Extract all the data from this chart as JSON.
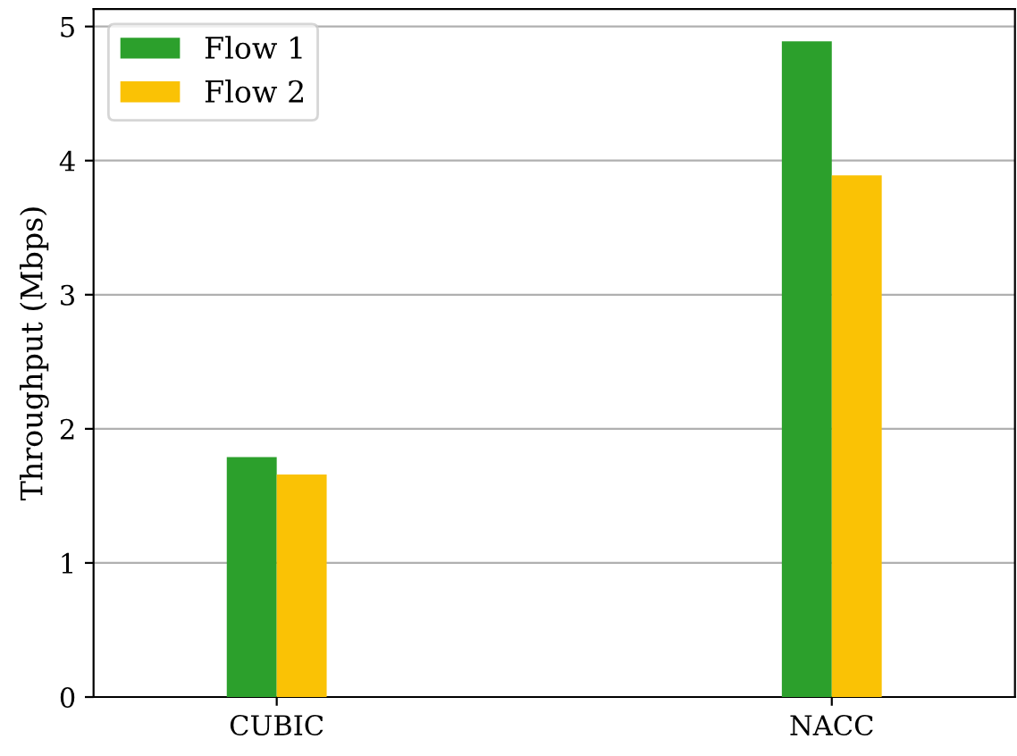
{
  "chart_data": {
    "type": "bar",
    "ylabel": "Throughput (Mbps)",
    "categories": [
      "CUBIC",
      "NACC"
    ],
    "series": [
      {
        "name": "Flow 1",
        "color": "#2ca02c",
        "values": [
          1.79,
          4.89
        ]
      },
      {
        "name": "Flow 2",
        "color": "#fac205",
        "values": [
          1.66,
          3.89
        ]
      }
    ],
    "ylim": [
      0,
      5.13
    ],
    "yticks": [
      0,
      1,
      2,
      3,
      4,
      5
    ],
    "grid": "y",
    "legend": "top left"
  }
}
